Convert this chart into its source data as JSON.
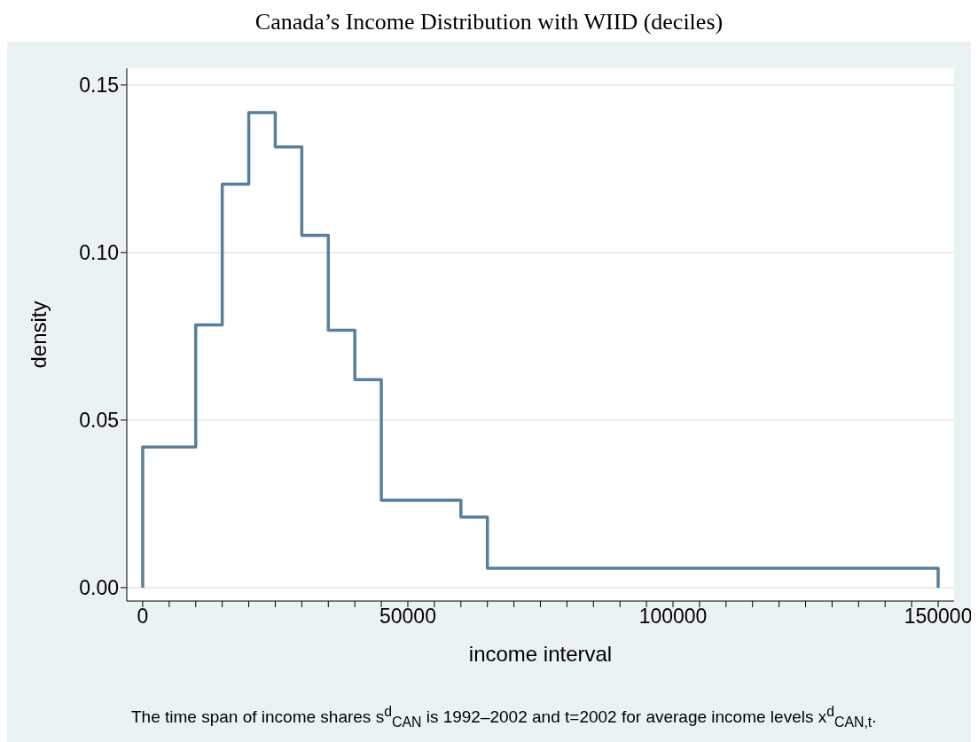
{
  "chart_data": {
    "type": "histogram",
    "title": "Canada’s Income Distribution with WIID (deciles)",
    "xlabel": "income interval",
    "ylabel": "density",
    "annotations": [
      "The time span of income shares s$^{d}$$_{CAN}$ is 1992–2002 and t=2002 for average income levels x$^{d}$$_{CAN,t}$."
    ],
    "bins": [
      0,
      10000,
      15000,
      20000,
      25000,
      30000,
      35000,
      40000,
      45000,
      60000,
      65000,
      150000
    ],
    "values": [
      0.042,
      0.0784,
      0.1204,
      0.1418,
      0.1315,
      0.1051,
      0.0768,
      0.0621,
      0.0261,
      0.0211,
      0.0058
    ],
    "color": "#5b7f9a",
    "xlim": [
      -3000,
      153000
    ],
    "xticks": [
      0,
      {
        "value": 5000,
        "label": null
      },
      {
        "value": 10000,
        "label": null
      },
      {
        "value": 15000,
        "label": null
      },
      {
        "value": 20000,
        "label": null
      },
      {
        "value": 25000,
        "label": null
      },
      {
        "value": 30000,
        "label": null
      },
      {
        "value": 35000,
        "label": null
      },
      {
        "value": 40000,
        "label": null
      },
      {
        "value": 45000,
        "label": null
      },
      50000,
      {
        "value": 55000,
        "label": null
      },
      {
        "value": 60000,
        "label": null
      },
      {
        "value": 65000,
        "label": null
      },
      {
        "value": 70000,
        "label": null
      },
      {
        "value": 75000,
        "label": null
      },
      {
        "value": 80000,
        "label": null
      },
      {
        "value": 85000,
        "label": null
      },
      {
        "value": 90000,
        "label": null
      },
      {
        "value": 95000,
        "label": null
      },
      100000,
      {
        "value": 105000,
        "label": null
      },
      {
        "value": 110000,
        "label": null
      },
      {
        "value": 115000,
        "label": null
      },
      {
        "value": 120000,
        "label": null
      },
      {
        "value": 125000,
        "label": null
      },
      {
        "value": 130000,
        "label": null
      },
      {
        "value": 135000,
        "label": null
      },
      {
        "value": 140000,
        "label": null
      },
      {
        "value": 145000,
        "label": null
      },
      150000
    ],
    "ylim": [
      -0.004,
      0.155
    ],
    "yticks": [
      {
        "value": 0,
        "label": "0.00"
      },
      {
        "value": 0.05,
        "label": "0.05"
      },
      {
        "value": 0.1,
        "label": "0.10"
      },
      {
        "value": 0.15,
        "label": "0.15"
      }
    ],
    "grid": "y",
    "legend": false
  }
}
